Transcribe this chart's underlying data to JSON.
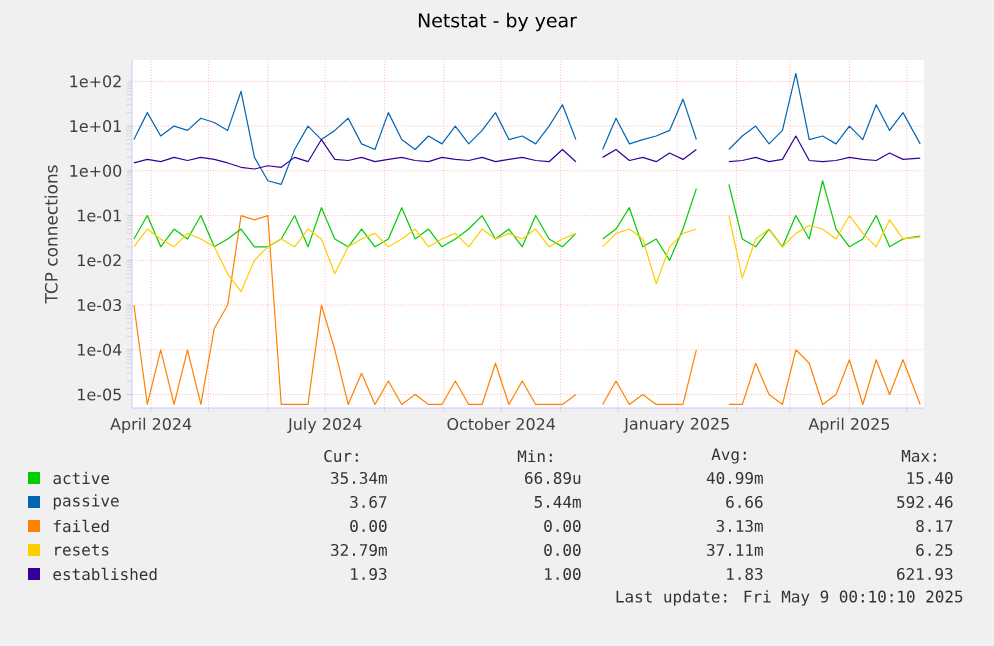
{
  "chart_data": {
    "type": "line",
    "title": "Netstat - by year",
    "ylabel": "TCP connections",
    "x": [
      "2024-03-23",
      "2024-03-30",
      "2024-04-06",
      "2024-04-13",
      "2024-04-20",
      "2024-04-27",
      "2024-05-04",
      "2024-05-11",
      "2024-05-18",
      "2024-05-25",
      "2024-06-01",
      "2024-06-08",
      "2024-06-15",
      "2024-06-22",
      "2024-06-29",
      "2024-07-06",
      "2024-07-13",
      "2024-07-20",
      "2024-07-27",
      "2024-08-03",
      "2024-08-10",
      "2024-08-17",
      "2024-08-24",
      "2024-08-31",
      "2024-09-07",
      "2024-09-14",
      "2024-09-21",
      "2024-09-28",
      "2024-10-05",
      "2024-10-12",
      "2024-10-19",
      "2024-10-26",
      "2024-11-02",
      "2024-11-09",
      "2024-11-16",
      "2024-11-23",
      "2024-11-30",
      "2024-12-07",
      "2024-12-14",
      "2024-12-21",
      "2024-12-28",
      "2025-01-04",
      "2025-01-11",
      "2025-01-20",
      "2025-01-28",
      "2025-02-04",
      "2025-02-11",
      "2025-02-18",
      "2025-02-25",
      "2025-03-04",
      "2025-03-11",
      "2025-03-18",
      "2025-03-25",
      "2025-04-01",
      "2025-04-08",
      "2025-04-15",
      "2025-04-22",
      "2025-04-29",
      "2025-05-08"
    ],
    "series": [
      {
        "name": "active",
        "color": "#00cc00",
        "values": [
          0.03,
          0.1,
          0.02,
          0.05,
          0.03,
          0.1,
          0.02,
          0.03,
          0.05,
          0.02,
          0.02,
          0.03,
          0.1,
          0.02,
          0.15,
          0.03,
          0.02,
          0.05,
          0.02,
          0.03,
          0.15,
          0.03,
          0.05,
          0.02,
          0.03,
          0.05,
          0.1,
          0.03,
          0.05,
          0.02,
          0.1,
          0.03,
          0.02,
          0.04,
          null,
          0.03,
          0.05,
          0.15,
          0.02,
          0.03,
          0.01,
          0.05,
          0.4,
          null,
          0.5,
          0.03,
          0.02,
          0.05,
          0.02,
          0.1,
          0.03,
          0.6,
          0.05,
          0.02,
          0.03,
          0.1,
          0.02,
          0.03,
          0.035
        ]
      },
      {
        "name": "passive",
        "color": "#0066b3",
        "values": [
          5,
          20,
          6,
          10,
          8,
          15,
          12,
          8,
          60,
          2,
          0.6,
          0.5,
          3,
          10,
          5,
          8,
          15,
          4,
          3,
          20,
          5,
          3,
          6,
          4,
          10,
          4,
          8,
          20,
          5,
          6,
          4,
          10,
          30,
          5,
          null,
          3,
          15,
          4,
          5,
          6,
          8,
          40,
          5,
          null,
          3,
          6,
          10,
          4,
          8,
          150,
          5,
          6,
          4,
          10,
          5,
          30,
          8,
          20,
          4
        ]
      },
      {
        "name": "failed",
        "color": "#ff8000",
        "values": [
          0.001,
          6e-06,
          0.0001,
          6e-06,
          0.0001,
          6e-06,
          0.0003,
          0.001,
          0.1,
          0.08,
          0.1,
          6e-06,
          6e-06,
          6e-06,
          0.001,
          0.0001,
          6e-06,
          3e-05,
          6e-06,
          2e-05,
          6e-06,
          1e-05,
          6e-06,
          6e-06,
          2e-05,
          6e-06,
          6e-06,
          5e-05,
          6e-06,
          2e-05,
          6e-06,
          6e-06,
          6e-06,
          1e-05,
          null,
          6e-06,
          2e-05,
          6e-06,
          1e-05,
          6e-06,
          6e-06,
          6e-06,
          0.0001,
          null,
          6e-06,
          6e-06,
          5e-05,
          1e-05,
          6e-06,
          0.0001,
          5e-05,
          6e-06,
          1e-05,
          6e-05,
          6e-06,
          6e-05,
          1e-05,
          6e-05,
          6e-06
        ]
      },
      {
        "name": "resets",
        "color": "#ffcc00",
        "values": [
          0.02,
          0.05,
          0.03,
          0.02,
          0.04,
          0.03,
          0.02,
          0.005,
          0.002,
          0.01,
          0.02,
          0.03,
          0.02,
          0.05,
          0.03,
          0.005,
          0.02,
          0.03,
          0.04,
          0.02,
          0.03,
          0.05,
          0.02,
          0.03,
          0.04,
          0.02,
          0.05,
          0.03,
          0.04,
          0.03,
          0.05,
          0.02,
          0.03,
          0.04,
          null,
          0.02,
          0.04,
          0.05,
          0.03,
          0.003,
          0.02,
          0.04,
          0.05,
          null,
          0.1,
          0.004,
          0.03,
          0.05,
          0.02,
          0.04,
          0.06,
          0.05,
          0.03,
          0.1,
          0.04,
          0.02,
          0.08,
          0.03,
          0.033
        ]
      },
      {
        "name": "established",
        "color": "#330099",
        "values": [
          1.5,
          1.8,
          1.6,
          2,
          1.7,
          2,
          1.8,
          1.5,
          1.2,
          1.1,
          1.3,
          1.2,
          2,
          1.6,
          5,
          1.8,
          1.7,
          2,
          1.6,
          1.8,
          2,
          1.7,
          1.6,
          2,
          1.8,
          1.7,
          2,
          1.6,
          1.8,
          2,
          1.7,
          1.6,
          3,
          1.6,
          null,
          2,
          3,
          1.7,
          2,
          1.6,
          2.5,
          1.8,
          3,
          null,
          1.6,
          1.7,
          2,
          1.6,
          1.8,
          6,
          1.7,
          1.6,
          1.7,
          2,
          1.8,
          1.7,
          2.5,
          1.8,
          1.93
        ]
      }
    ],
    "xlim": [
      "2024-03-22",
      "2025-05-10"
    ],
    "xticks": [
      {
        "value": "2024-04-01",
        "label": "April 2024"
      },
      {
        "value": "2024-05-01",
        "label": null
      },
      {
        "value": "2024-06-01",
        "label": null
      },
      {
        "value": "2024-07-01",
        "label": "July 2024"
      },
      {
        "value": "2024-08-01",
        "label": null
      },
      {
        "value": "2024-09-01",
        "label": null
      },
      {
        "value": "2024-10-01",
        "label": "October 2024"
      },
      {
        "value": "2024-11-01",
        "label": null
      },
      {
        "value": "2024-12-01",
        "label": null
      },
      {
        "value": "2025-01-01",
        "label": "January 2025"
      },
      {
        "value": "2025-02-01",
        "label": null
      },
      {
        "value": "2025-03-01",
        "label": null
      },
      {
        "value": "2025-04-01",
        "label": "April 2025"
      },
      {
        "value": "2025-05-01",
        "label": null
      }
    ],
    "ylim": [
      5e-06,
      300
    ],
    "yticks": [
      {
        "value": 1e-05,
        "label": "1e-05"
      },
      {
        "value": 0.0001,
        "label": "1e-04"
      },
      {
        "value": 0.001,
        "label": "1e-03"
      },
      {
        "value": 0.01,
        "label": "1e-02"
      },
      {
        "value": 0.1,
        "label": "1e-01"
      },
      {
        "value": 1,
        "label": "1e+00"
      },
      {
        "value": 10,
        "label": "1e+01"
      },
      {
        "value": 100,
        "label": "1e+02"
      }
    ],
    "log": true,
    "grid": true,
    "legend": "bottom",
    "annotations": [
      "Cur:",
      "Min:",
      "Avg:",
      "Max:",
      "35.34m",
      "66.89u",
      "40.99m",
      "15.40",
      "3.67",
      "5.44m",
      "6.66",
      "592.46",
      "0.00",
      "0.00",
      "3.13m",
      "8.17",
      "32.79m",
      "0.00",
      "37.11m",
      "6.25",
      "1.93",
      "1.00",
      "1.83",
      "621.93",
      "Last update: Fri May  9 00:10:10 2025"
    ]
  }
}
